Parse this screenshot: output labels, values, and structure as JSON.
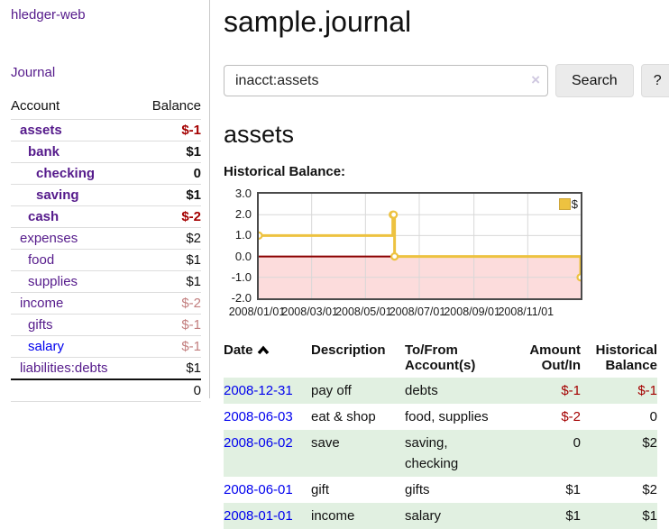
{
  "app": {
    "title": "hledger-web",
    "journal_link": "Journal"
  },
  "sidebar": {
    "headers": [
      "Account",
      "Balance"
    ],
    "rows": [
      {
        "account": "assets",
        "depth": 1,
        "bold": true,
        "balance": "$-1",
        "balance_class": "neg"
      },
      {
        "account": "bank",
        "depth": 2,
        "bold": true,
        "balance": "$1",
        "balance_class": ""
      },
      {
        "account": "checking",
        "depth": 3,
        "bold": true,
        "balance": "0",
        "balance_class": ""
      },
      {
        "account": "saving",
        "depth": 3,
        "bold": true,
        "balance": "$1",
        "balance_class": ""
      },
      {
        "account": "cash",
        "depth": 2,
        "bold": true,
        "balance": "$-2",
        "balance_class": "neg"
      },
      {
        "account": "expenses",
        "depth": 1,
        "bold": false,
        "balance": "$2",
        "balance_class": ""
      },
      {
        "account": "food",
        "depth": 2,
        "bold": false,
        "balance": "$1",
        "balance_class": ""
      },
      {
        "account": "supplies",
        "depth": 2,
        "bold": false,
        "balance": "$1",
        "balance_class": ""
      },
      {
        "account": "income",
        "depth": 1,
        "bold": false,
        "balance": "$-2",
        "balance_class": "neg-muted"
      },
      {
        "account": "gifts",
        "depth": 2,
        "bold": false,
        "balance": "$-1",
        "balance_class": "neg-muted"
      },
      {
        "account": "salary",
        "depth": 2,
        "bold": false,
        "balance": "$-1",
        "balance_class": "neg-muted",
        "link_color": "blue"
      },
      {
        "account": "liabilities:debts",
        "depth": 1,
        "bold": false,
        "balance": "$1",
        "balance_class": ""
      }
    ],
    "total": "0"
  },
  "header": {
    "title": "sample.journal"
  },
  "search": {
    "value": "inacct:assets",
    "placeholder": "",
    "clear_icon": "×",
    "button_label": "Search",
    "help_label": "?"
  },
  "account_page": {
    "heading": "assets",
    "chart_label": "Historical Balance:"
  },
  "chart_data": {
    "type": "line",
    "style": "step",
    "title": "Historical Balance",
    "legend": "$",
    "legend_position": "top-right",
    "grid": true,
    "line_color": "#edc240",
    "point_fill": "#ffffff",
    "grid_color": "#d8d8d8",
    "negative_region_color": "#fcdcdc",
    "zero_line_color": "#8b0000",
    "ylim": [
      -2,
      3
    ],
    "xlim_days": [
      0,
      365
    ],
    "y_ticks": [
      {
        "label": "3.0",
        "value": 3
      },
      {
        "label": "2.0",
        "value": 2
      },
      {
        "label": "1.0",
        "value": 1
      },
      {
        "label": "0.0",
        "value": 0
      },
      {
        "label": "-1.0",
        "value": -1
      },
      {
        "label": "-2.0",
        "value": -2
      }
    ],
    "x_ticks": [
      {
        "label": "2008/01/01",
        "day": 0
      },
      {
        "label": "2008/03/01",
        "day": 60
      },
      {
        "label": "2008/05/01",
        "day": 121
      },
      {
        "label": "2008/07/01",
        "day": 182
      },
      {
        "label": "2008/09/01",
        "day": 244
      },
      {
        "label": "2008/11/01",
        "day": 305
      }
    ],
    "series": [
      {
        "name": "$",
        "points": [
          {
            "date": "2008-01-01",
            "day": 0,
            "value": 1
          },
          {
            "date": "2008-06-01",
            "day": 152,
            "value": 2
          },
          {
            "date": "2008-06-02",
            "day": 153,
            "value": 2
          },
          {
            "date": "2008-06-03",
            "day": 154,
            "value": 0
          },
          {
            "date": "2008-12-31",
            "day": 365,
            "value": -1
          }
        ]
      }
    ]
  },
  "register": {
    "columns": [
      "Date",
      "Description",
      "To/From\nAccount(s)",
      "Amount\nOut/In",
      "Historical\nBalance"
    ],
    "sort_icon": "chevron-up",
    "rows": [
      {
        "date": "2008-12-31",
        "description": "pay off",
        "to_from": "debts",
        "amount": "$-1",
        "amount_neg": true,
        "balance": "$-1",
        "balance_neg": true,
        "shaded": true
      },
      {
        "date": "2008-06-03",
        "description": "eat & shop",
        "to_from": "food, supplies",
        "amount": "$-2",
        "amount_neg": true,
        "balance": "0",
        "balance_neg": false,
        "shaded": false
      },
      {
        "date": "2008-06-02",
        "description": "save",
        "to_from": "saving,\nchecking",
        "amount": "0",
        "amount_neg": false,
        "balance": "$2",
        "balance_neg": false,
        "shaded": true
      },
      {
        "date": "2008-06-01",
        "description": "gift",
        "to_from": "gifts",
        "amount": "$1",
        "amount_neg": false,
        "balance": "$2",
        "balance_neg": false,
        "shaded": false
      },
      {
        "date": "2008-01-01",
        "description": "income",
        "to_from": "salary",
        "amount": "$1",
        "amount_neg": false,
        "balance": "$1",
        "balance_neg": false,
        "shaded": true
      }
    ]
  }
}
